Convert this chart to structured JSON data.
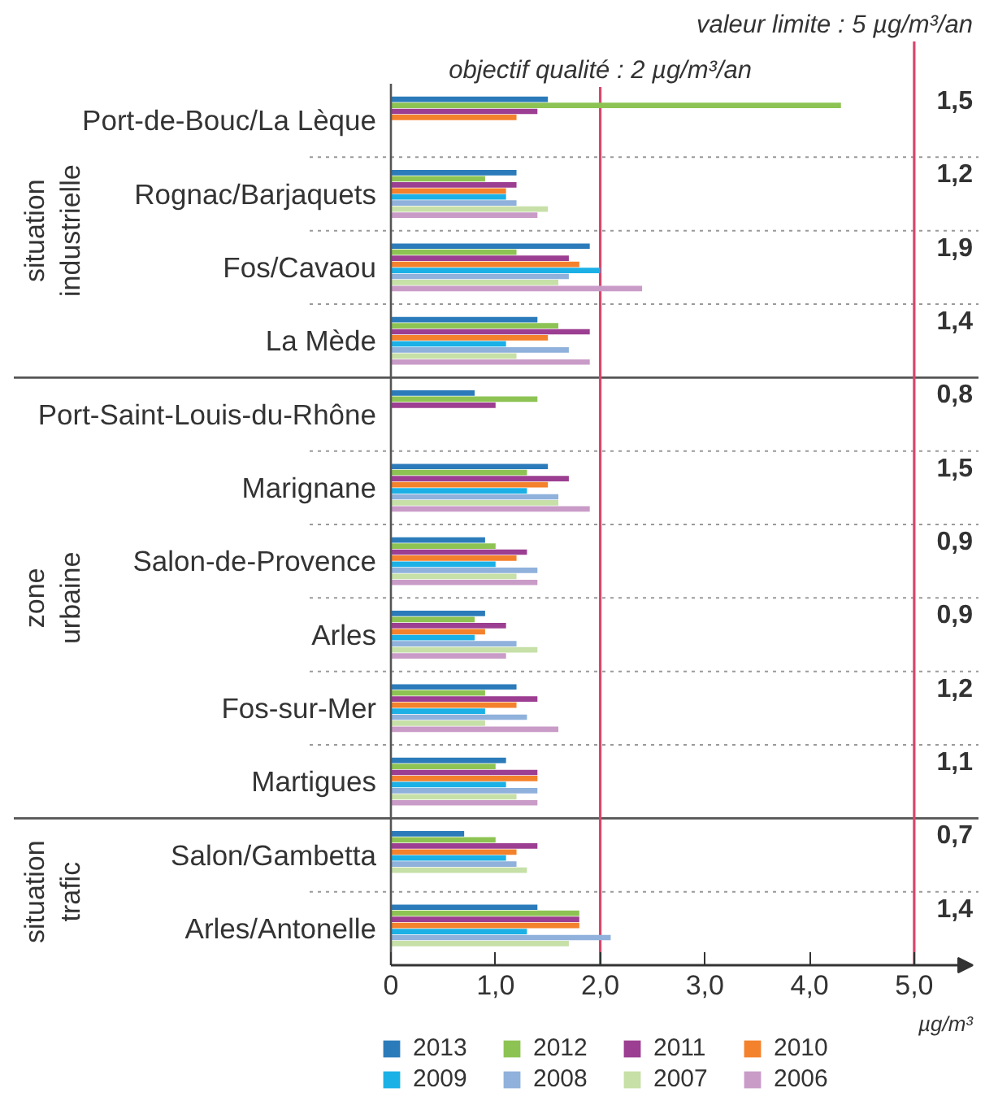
{
  "chart_data": {
    "type": "bar",
    "orientation": "horizontal",
    "categories": [
      "Port-de-Bouc/La Lèque",
      "Rognac/Barjaquets",
      "Fos/Cavaou",
      "La Mède",
      "Port-Saint-Louis-du-Rhône",
      "Marignane",
      "Salon-de-Provence",
      "Arles",
      "Fos-sur-Mer",
      "Martigues",
      "Salon/Gambetta",
      "Arles/Antonelle"
    ],
    "series": [
      {
        "name": "2013",
        "color": "#2b7bba",
        "values": [
          1.5,
          1.2,
          1.9,
          1.4,
          0.8,
          1.5,
          0.9,
          0.9,
          1.2,
          1.1,
          0.7,
          1.4
        ],
        "value_labels": [
          "1,5",
          "1,2",
          "1,9",
          "1,4",
          "0,8",
          "1,5",
          "0,9",
          "0,9",
          "1,2",
          "1,1",
          "0,7",
          "1,4"
        ]
      },
      {
        "name": "2012",
        "color": "#8dc353",
        "values": [
          4.3,
          0.9,
          1.2,
          1.6,
          1.4,
          1.3,
          1.0,
          0.8,
          0.9,
          1.0,
          1.0,
          1.8
        ]
      },
      {
        "name": "2011",
        "color": "#9c3e91",
        "values": [
          1.4,
          1.2,
          1.7,
          1.9,
          1.0,
          1.7,
          1.3,
          1.1,
          1.4,
          1.4,
          1.4,
          1.8
        ]
      },
      {
        "name": "2010",
        "color": "#f4812b",
        "values": [
          1.2,
          1.1,
          1.8,
          1.5,
          null,
          1.5,
          1.2,
          0.9,
          1.2,
          1.4,
          1.2,
          1.8
        ]
      },
      {
        "name": "2009",
        "color": "#1bb0e6",
        "values": [
          null,
          1.1,
          2.0,
          1.1,
          null,
          1.3,
          1.0,
          0.8,
          0.9,
          1.1,
          1.1,
          1.3
        ]
      },
      {
        "name": "2008",
        "color": "#8fb1db",
        "values": [
          null,
          1.2,
          1.7,
          1.7,
          null,
          1.6,
          1.4,
          1.2,
          1.3,
          1.4,
          1.2,
          2.1
        ]
      },
      {
        "name": "2007",
        "color": "#c6e0a8",
        "values": [
          null,
          1.5,
          1.6,
          1.2,
          null,
          1.6,
          1.2,
          1.4,
          0.9,
          1.2,
          1.3,
          1.7
        ]
      },
      {
        "name": "2006",
        "color": "#c99bc7",
        "values": [
          null,
          1.4,
          2.4,
          1.9,
          null,
          1.9,
          1.4,
          1.1,
          1.6,
          1.4,
          null,
          null
        ]
      }
    ],
    "xlabel": "µg/m³",
    "xlim": [
      0,
      5.56
    ],
    "xticks": [
      0,
      {
        "value": 1,
        "label": "1,0"
      },
      {
        "value": 2,
        "label": "2,0"
      },
      {
        "value": 3,
        "label": "3,0"
      },
      {
        "value": 4,
        "label": "4,0"
      },
      {
        "value": 5,
        "label": "5,0"
      }
    ],
    "ref_lines": [
      {
        "axis": "x",
        "value": 2,
        "label": "objectif qualité : 2 µg/m³/an",
        "color": "#d9466d"
      },
      {
        "axis": "x",
        "value": 5,
        "label": "valeur limite : 5 µg/m³/an",
        "color": "#d9466d"
      }
    ],
    "annotations": [
      "situation industrielle",
      "zone urbaine",
      "situation trafic"
    ],
    "grid": "y",
    "legend": "bottom"
  }
}
